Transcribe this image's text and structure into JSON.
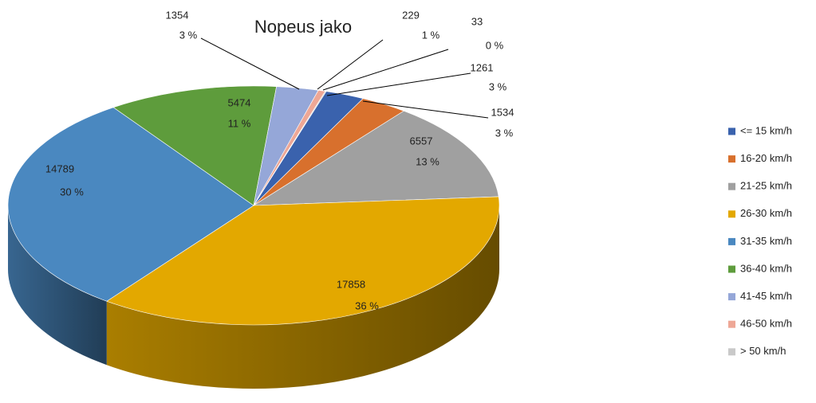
{
  "chart_data": {
    "type": "pie",
    "title": "Nopeus jako",
    "categories": [
      "<= 15 km/h",
      "16-20 km/h",
      "21-25 km/h",
      "26-30 km/h",
      "31-35 km/h",
      "36-40 km/h",
      "41-45 km/h",
      "46-50 km/h",
      "> 50 km/h"
    ],
    "values": [
      1261,
      1534,
      6557,
      17858,
      14789,
      5474,
      1354,
      229,
      33
    ],
    "percent_labels": [
      "3 %",
      "3 %",
      "13 %",
      "36 %",
      "30 %",
      "11 %",
      "3 %",
      "1 %",
      "0 %"
    ],
    "colors": [
      "#3a62ad",
      "#d8702d",
      "#a0a0a0",
      "#e3a800",
      "#4a88c0",
      "#5e9c3c",
      "#95a7d8",
      "#eea796",
      "#c9c9c9"
    ],
    "legend": "right"
  }
}
